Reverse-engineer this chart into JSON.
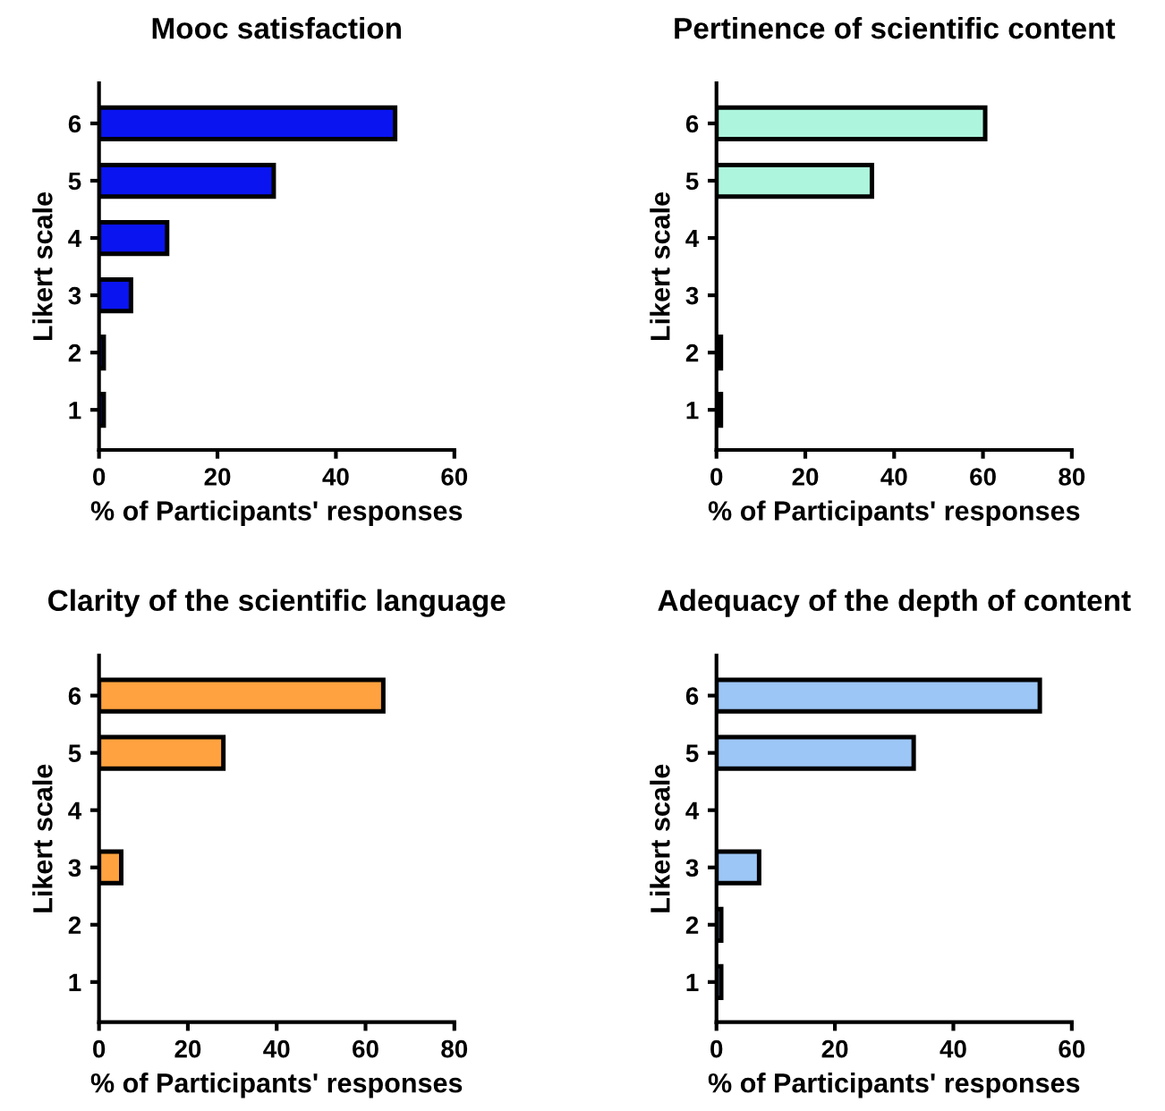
{
  "chart_data": [
    {
      "type": "bar",
      "orientation": "horizontal",
      "title": "Mooc satisfaction",
      "xlabel": "% of Participants' responses",
      "ylabel": "Likert scale",
      "categories": [
        "6",
        "5",
        "4",
        "3",
        "2",
        "1"
      ],
      "values": [
        50,
        29.5,
        11.5,
        5.4,
        0.8,
        0.8
      ],
      "color": "#0a14f0",
      "xlim": [
        0,
        60
      ],
      "xticks": [
        0,
        20,
        40,
        60
      ],
      "grid": false,
      "legend": false
    },
    {
      "type": "bar",
      "orientation": "horizontal",
      "title": "Pertinence of scientific content",
      "xlabel": "% of Participants' responses",
      "ylabel": "Likert scale",
      "categories": [
        "6",
        "5",
        "4",
        "3",
        "2",
        "1"
      ],
      "values": [
        60.5,
        35,
        0,
        0,
        1,
        1
      ],
      "color": "#adf5dc",
      "xlim": [
        0,
        80
      ],
      "xticks": [
        0,
        20,
        40,
        60,
        80
      ],
      "grid": false,
      "legend": false
    },
    {
      "type": "bar",
      "orientation": "horizontal",
      "title": "Clarity of the scientific language",
      "xlabel": "% of Participants' responses",
      "ylabel": "Likert scale",
      "categories": [
        "6",
        "5",
        "4",
        "3",
        "2",
        "1"
      ],
      "values": [
        64,
        28,
        0,
        5,
        null,
        null
      ],
      "color": "#ffa23f",
      "xlim": [
        0,
        80
      ],
      "xticks": [
        0,
        20,
        40,
        60,
        80
      ],
      "grid": false,
      "legend": false
    },
    {
      "type": "bar",
      "orientation": "horizontal",
      "title": "Adequacy of the depth of content",
      "xlabel": "% of Participants' responses",
      "ylabel": "Likert scale",
      "categories": [
        "6",
        "5",
        "4",
        "3",
        "2",
        "1"
      ],
      "values": [
        54.6,
        33.3,
        0,
        7.2,
        0.8,
        0.8
      ],
      "color": "#9cc6f5",
      "xlim": [
        0,
        60
      ],
      "xticks": [
        0,
        20,
        40,
        60
      ],
      "grid": false,
      "legend": false
    }
  ]
}
